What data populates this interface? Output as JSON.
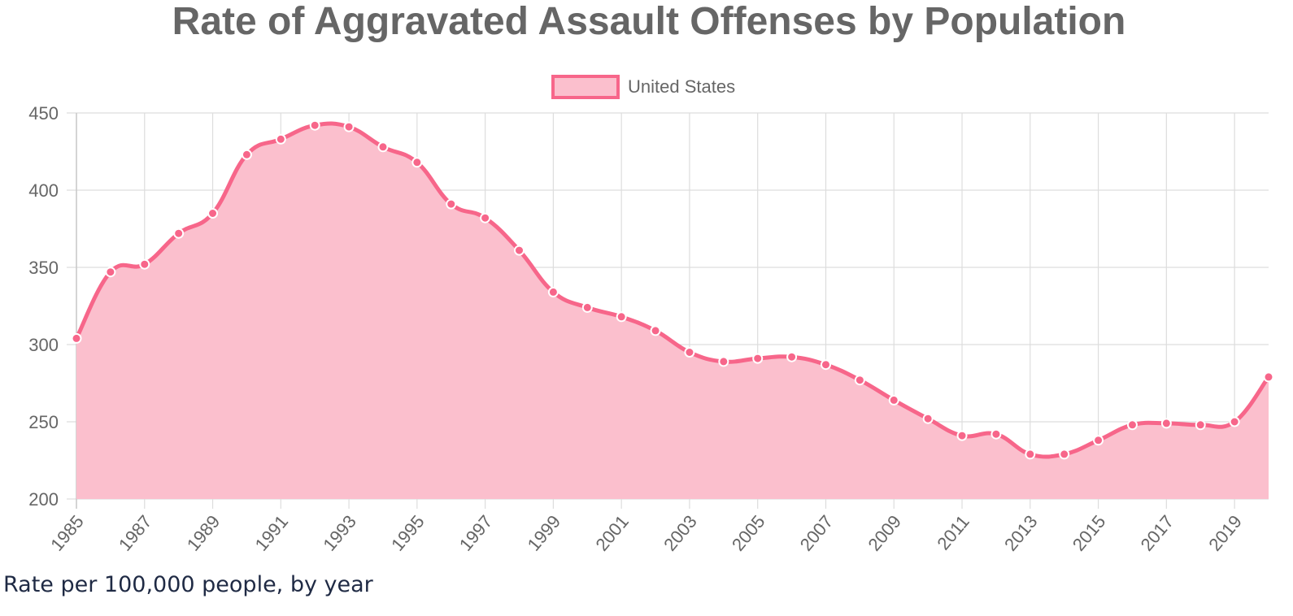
{
  "colors": {
    "line": "#f7668a",
    "fill": "#fbbfcd",
    "grid": "#dddddd",
    "text": "#666666",
    "caption": "#1f2a44"
  },
  "caption": "Rate per 100,000 people, by year",
  "chart_data": {
    "type": "area",
    "title": "Rate of Aggravated Assault Offenses by Population",
    "xlabel": "",
    "ylabel": "",
    "legend_position": "top-center",
    "grid": true,
    "ylim": [
      200,
      450
    ],
    "yticks": [
      200,
      250,
      300,
      350,
      400,
      450
    ],
    "x": [
      1985,
      1986,
      1987,
      1988,
      1989,
      1990,
      1991,
      1992,
      1993,
      1994,
      1995,
      1996,
      1997,
      1998,
      1999,
      2000,
      2001,
      2002,
      2003,
      2004,
      2005,
      2006,
      2007,
      2008,
      2009,
      2010,
      2011,
      2012,
      2013,
      2014,
      2015,
      2016,
      2017,
      2018,
      2019,
      2020
    ],
    "xtick_labels": [
      "1985",
      "1987",
      "1989",
      "1991",
      "1993",
      "1995",
      "1997",
      "1999",
      "2001",
      "2003",
      "2005",
      "2007",
      "2009",
      "2011",
      "2013",
      "2015",
      "2017",
      "2019"
    ],
    "series": [
      {
        "name": "United States",
        "values": [
          304,
          347,
          352,
          372,
          385,
          423,
          433,
          442,
          441,
          428,
          418,
          391,
          382,
          361,
          334,
          324,
          318,
          309,
          295,
          289,
          291,
          292,
          287,
          277,
          264,
          252,
          241,
          242,
          229,
          229,
          238,
          248,
          249,
          248,
          250,
          279
        ]
      }
    ]
  }
}
